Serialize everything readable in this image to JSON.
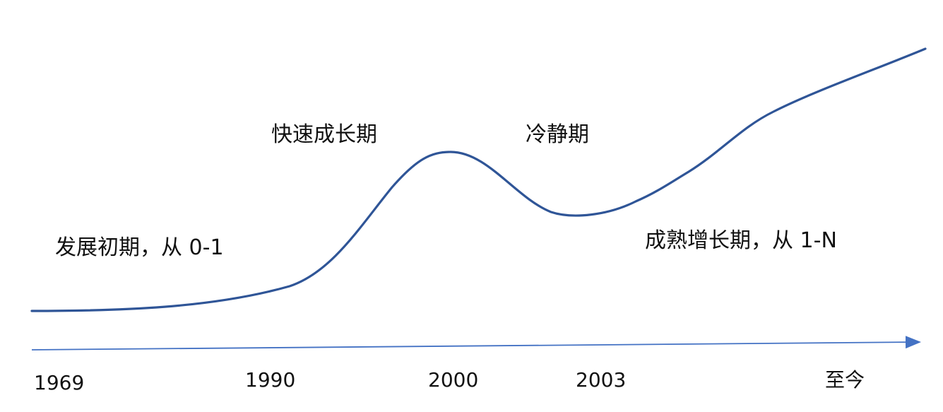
{
  "diagram": {
    "phases": [
      {
        "id": "initial",
        "label": "发展初期，从 0-1"
      },
      {
        "id": "rapid-growth",
        "label": "快速成长期"
      },
      {
        "id": "calm",
        "label": "冷静期"
      },
      {
        "id": "mature-growth",
        "label": "成熟增长期，从 1-N"
      }
    ],
    "timeline": {
      "ticks": [
        "1969",
        "1990",
        "2000",
        "2003",
        "至今"
      ]
    },
    "colors": {
      "curve": "#2F5597",
      "axis": "#4472C4",
      "text": "#111111"
    }
  }
}
